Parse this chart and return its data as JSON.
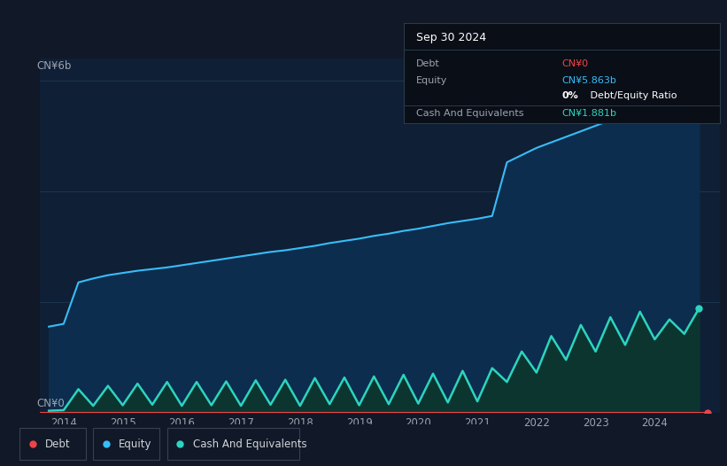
{
  "bg_color": "#111827",
  "plot_bg_color": "#0f1f35",
  "equity_color": "#38bdf8",
  "equity_fill_color": "#0c2d4e",
  "cash_color": "#2dd4bf",
  "cash_fill_color": "#0d3530",
  "debt_color": "#ef4444",
  "grid_color": "#1e3a52",
  "tick_color": "#9ca3af",
  "ylabel_top": "CN¥6b",
  "ylabel_bottom": "CN¥0",
  "x_ticks": [
    "2014",
    "2015",
    "2016",
    "2017",
    "2018",
    "2019",
    "2020",
    "2021",
    "2022",
    "2023",
    "2024"
  ],
  "legend_items": [
    {
      "label": "Debt",
      "color": "#ef4444"
    },
    {
      "label": "Equity",
      "color": "#38bdf8"
    },
    {
      "label": "Cash And Equivalents",
      "color": "#2dd4bf"
    }
  ],
  "ylim": [
    0,
    6.4
  ],
  "xlim": [
    2013.6,
    2025.1
  ],
  "equity_data_x": [
    2013.75,
    2014.0,
    2014.25,
    2014.5,
    2014.75,
    2015.0,
    2015.25,
    2015.5,
    2015.75,
    2016.0,
    2016.25,
    2016.5,
    2016.75,
    2017.0,
    2017.25,
    2017.5,
    2017.75,
    2018.0,
    2018.25,
    2018.5,
    2018.75,
    2019.0,
    2019.25,
    2019.5,
    2019.75,
    2020.0,
    2020.25,
    2020.5,
    2020.75,
    2021.0,
    2021.25,
    2021.5,
    2021.75,
    2022.0,
    2022.25,
    2022.5,
    2022.75,
    2023.0,
    2023.25,
    2023.5,
    2023.75,
    2024.0,
    2024.25,
    2024.5,
    2024.75
  ],
  "equity_data_y": [
    1.55,
    1.6,
    2.35,
    2.42,
    2.48,
    2.52,
    2.56,
    2.59,
    2.62,
    2.66,
    2.7,
    2.74,
    2.78,
    2.82,
    2.86,
    2.9,
    2.93,
    2.97,
    3.01,
    3.06,
    3.1,
    3.14,
    3.19,
    3.23,
    3.28,
    3.32,
    3.37,
    3.42,
    3.46,
    3.5,
    3.55,
    4.52,
    4.65,
    4.78,
    4.88,
    4.98,
    5.08,
    5.18,
    5.28,
    5.38,
    5.47,
    5.57,
    5.67,
    5.8,
    5.86
  ],
  "cash_data_x": [
    2013.75,
    2014.0,
    2014.25,
    2014.5,
    2014.75,
    2015.0,
    2015.25,
    2015.5,
    2015.75,
    2016.0,
    2016.25,
    2016.5,
    2016.75,
    2017.0,
    2017.25,
    2017.5,
    2017.75,
    2018.0,
    2018.25,
    2018.5,
    2018.75,
    2019.0,
    2019.25,
    2019.5,
    2019.75,
    2020.0,
    2020.25,
    2020.5,
    2020.75,
    2021.0,
    2021.25,
    2021.5,
    2021.75,
    2022.0,
    2022.25,
    2022.5,
    2022.75,
    2023.0,
    2023.25,
    2023.5,
    2023.75,
    2024.0,
    2024.25,
    2024.5,
    2024.75
  ],
  "cash_data_y": [
    0.03,
    0.04,
    0.42,
    0.12,
    0.48,
    0.13,
    0.52,
    0.14,
    0.55,
    0.12,
    0.55,
    0.13,
    0.56,
    0.12,
    0.58,
    0.14,
    0.59,
    0.12,
    0.62,
    0.15,
    0.63,
    0.13,
    0.65,
    0.15,
    0.68,
    0.16,
    0.7,
    0.18,
    0.75,
    0.2,
    0.8,
    0.55,
    1.1,
    0.72,
    1.38,
    0.95,
    1.58,
    1.1,
    1.72,
    1.22,
    1.82,
    1.32,
    1.68,
    1.42,
    1.88
  ],
  "debt_data_x": [
    2013.6,
    2024.9
  ],
  "debt_data_y": [
    0.0,
    0.0
  ],
  "tooltip_bg": "#0a0e17",
  "tooltip_border": "#2a3a4a",
  "tooltip_title": "Sep 30 2024",
  "tooltip_rows": [
    {
      "label": "Debt",
      "value": "CN¥0",
      "label_color": "#9ca3af",
      "value_color": "#ef4444"
    },
    {
      "label": "Equity",
      "value": "CN¥5.863b",
      "label_color": "#9ca3af",
      "value_color": "#38bdf8"
    },
    {
      "label": "",
      "value": "0% Debt/Equity Ratio",
      "label_color": "#9ca3af",
      "value_color": "#ffffff"
    },
    {
      "label": "Cash And Equivalents",
      "value": "CN¥1.881b",
      "label_color": "#9ca3af",
      "value_color": "#2dd4bf"
    }
  ]
}
